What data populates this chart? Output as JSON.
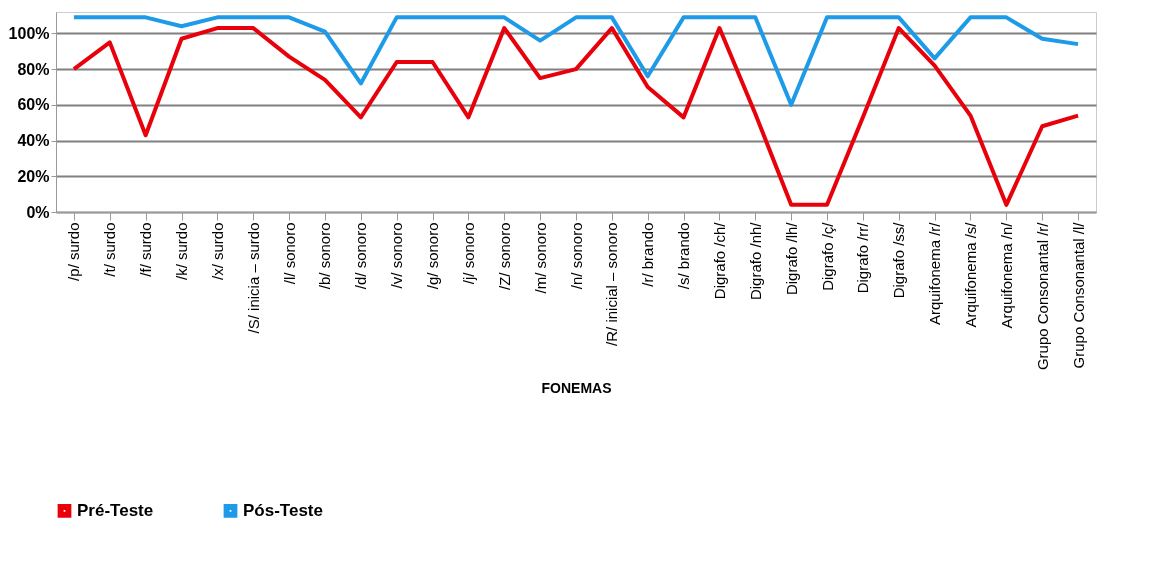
{
  "chart_data": {
    "type": "line",
    "xlabel": "FONEMAS",
    "categories": [
      "/p/ surdo",
      "/t/ surdo",
      "/f/ surdo",
      "/k/ surdo",
      "/x/ surdo",
      "/S/ inicia – surdo",
      "/l/ sonoro",
      "/b/ sonoro",
      "/d/ sonoro",
      "/v/ sonoro",
      "/g/ sonoro",
      "/j/ sonoro",
      "/Z/ sonoro",
      "/m/ sonoro",
      "/n/ sonoro",
      "/R/ inicial – sonoro",
      "/r/ brando",
      "/s/ brando",
      "Digrafo /ch/",
      "Digrafo /nh/",
      "Digrafo /lh/",
      "Digrafo /ç/",
      "Digrafo /rr/",
      "Digrafo /ss/",
      "Arquifonema /r/",
      "Arquifonema /s/",
      "Arquifonema /n/",
      "Grupo Consonantal /r/",
      "Grupo Consonantal /l/"
    ],
    "series": [
      {
        "name": "Pré-Teste",
        "color": "#e8000b",
        "values": [
          80,
          95,
          43,
          97,
          103,
          103,
          87,
          74,
          53,
          84,
          84,
          53,
          103,
          75,
          80,
          103,
          70,
          53,
          103,
          55,
          4,
          4,
          53,
          103,
          82,
          54,
          4,
          48,
          54
        ]
      },
      {
        "name": "Pós-Teste",
        "color": "#1e9be8",
        "values": [
          109,
          109,
          109,
          104,
          109,
          109,
          109,
          101,
          72,
          109,
          109,
          109,
          109,
          96,
          109,
          109,
          76,
          109,
          109,
          109,
          60,
          109,
          109,
          109,
          86,
          109,
          109,
          97,
          94
        ]
      }
    ],
    "ylim": [
      0,
      112
    ],
    "yticks": [
      {
        "value": 0,
        "label": "0%"
      },
      {
        "value": 20,
        "label": "20%"
      },
      {
        "value": 40,
        "label": "40%"
      },
      {
        "value": 60,
        "label": "60%"
      },
      {
        "value": 80,
        "label": "80%"
      },
      {
        "value": 100,
        "label": "100%"
      }
    ],
    "grid": "y",
    "legend": "bottom left",
    "marker": "none",
    "line_style": "solid"
  }
}
